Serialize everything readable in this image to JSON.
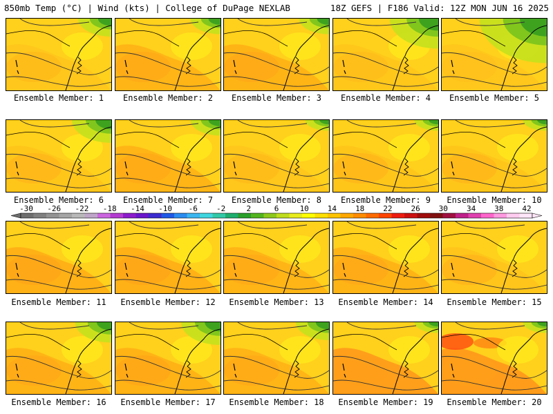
{
  "header": {
    "left": "850mb Temp (°C) | Wind (kts) | College of DuPage NEXLAB",
    "right": "18Z GEFS | F186 Valid: 12Z MON JUN 16 2025"
  },
  "members": [
    {
      "label": "Ensemble Member: 1",
      "green": 0.2,
      "warm": 0.35
    },
    {
      "label": "Ensemble Member: 2",
      "green": 0.15,
      "warm": 0.55
    },
    {
      "label": "Ensemble Member: 3",
      "green": 0.15,
      "warm": 0.6
    },
    {
      "label": "Ensemble Member: 4",
      "green": 0.45,
      "warm": 0.3
    },
    {
      "label": "Ensemble Member: 5",
      "green": 0.75,
      "warm": 0.2
    },
    {
      "label": "Ensemble Member: 6",
      "green": 0.3,
      "warm": 0.45
    },
    {
      "label": "Ensemble Member: 7",
      "green": 0.15,
      "warm": 0.55
    },
    {
      "label": "Ensemble Member: 8",
      "green": 0.05,
      "warm": 0.35
    },
    {
      "label": "Ensemble Member: 9",
      "green": 0.05,
      "warm": 0.45
    },
    {
      "label": "Ensemble Member: 10",
      "green": 0.05,
      "warm": 0.45
    },
    {
      "label": "Ensemble Member: 11",
      "green": 0.0,
      "warm": 0.7
    },
    {
      "label": "Ensemble Member: 12",
      "green": 0.0,
      "warm": 0.7
    },
    {
      "label": "Ensemble Member: 13",
      "green": 0.0,
      "warm": 0.55
    },
    {
      "label": "Ensemble Member: 14",
      "green": 0.0,
      "warm": 0.6
    },
    {
      "label": "Ensemble Member: 15",
      "green": 0.0,
      "warm": 0.5
    },
    {
      "label": "Ensemble Member: 16",
      "green": 0.25,
      "warm": 0.6
    },
    {
      "label": "Ensemble Member: 17",
      "green": 0.3,
      "warm": 0.65
    },
    {
      "label": "Ensemble Member: 18",
      "green": 0.2,
      "warm": 0.55
    },
    {
      "label": "Ensemble Member: 19",
      "green": 0.05,
      "warm": 0.85
    },
    {
      "label": "Ensemble Member: 20",
      "green": 0.05,
      "warm": 0.9
    }
  ],
  "colorbar": {
    "tick_labels": [
      "-30",
      "-26",
      "-22",
      "-18",
      "-14",
      "-10",
      "-6",
      "-2",
      "2",
      "6",
      "10",
      "14",
      "18",
      "22",
      "26",
      "30",
      "34",
      "38",
      "42"
    ],
    "colors": [
      "#6e6e6e",
      "#808080",
      "#939393",
      "#a6a6a6",
      "#b9b9b9",
      "#bfa6c9",
      "#cc66e0",
      "#b33bd1",
      "#8c1ccc",
      "#6b17cc",
      "#3a2ccf",
      "#1f58e6",
      "#2a8cf0",
      "#3bb6f0",
      "#40d6e0",
      "#33c9a8",
      "#1fae6e",
      "#2aa02a",
      "#52b41e",
      "#8cc81c",
      "#bfdc1e",
      "#e8ec1c",
      "#ffff00",
      "#ffe000",
      "#ffc400",
      "#ffa800",
      "#ff8c00",
      "#ff6a00",
      "#ff4400",
      "#ee1c10",
      "#cc1010",
      "#a00c0c",
      "#801010",
      "#a01040",
      "#c0208a",
      "#e040b0",
      "#ff66cc",
      "#ff99e0",
      "#ffccf0",
      "#ffe6f8"
    ]
  }
}
